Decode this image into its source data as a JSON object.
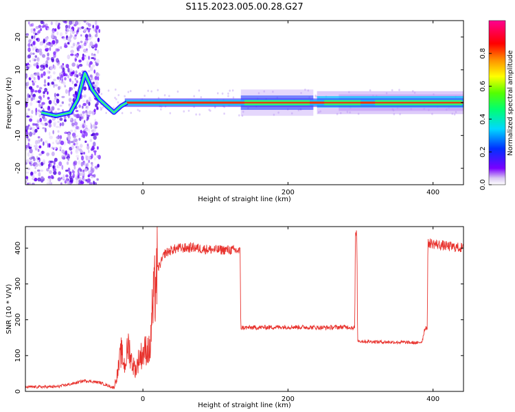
{
  "title": "S115.2023.005.00.28.G27",
  "chart_data": [
    {
      "type": "heatmap",
      "xlabel": "Height of straight line (km)",
      "ylabel": "Frequency (Hz)",
      "xlim": [
        -162,
        442
      ],
      "ylim": [
        -25,
        25
      ],
      "xticks": [
        0,
        200,
        400
      ],
      "yticks": [
        -20,
        -10,
        0,
        10,
        20
      ],
      "colorbar": {
        "label": "Normalized spectral amplitude",
        "ticks": [
          0.0,
          0.2,
          0.4,
          0.6,
          0.8
        ],
        "range": [
          0,
          1
        ],
        "colormap": "rainbow (white to purple to blue to cyan to green to yellow to red to magenta)"
      },
      "features": {
        "dominant_band_frequency": 0,
        "strong_band_x_range": [
          -25,
          442
        ],
        "weak_band_x_range": [
          135,
          235
        ],
        "widened_band_x_range": [
          240,
          442
        ],
        "low_altitude_scatter_x_range": [
          -162,
          -60
        ],
        "ridge_points": [
          [
            -140,
            -3
          ],
          [
            -120,
            -4
          ],
          [
            -100,
            -3
          ],
          [
            -90,
            1
          ],
          [
            -80,
            9
          ],
          [
            -70,
            4
          ],
          [
            -60,
            1
          ],
          [
            -50,
            -1
          ],
          [
            -40,
            -3
          ],
          [
            -30,
            -1
          ],
          [
            -22,
            0
          ]
        ]
      }
    },
    {
      "type": "line",
      "xlabel": "Height of straight line (km)",
      "ylabel": "SNR (10 * V/V)",
      "xlim": [
        -162,
        442
      ],
      "ylim": [
        0,
        460
      ],
      "xticks": [
        0,
        200,
        400
      ],
      "yticks": [
        0,
        100,
        200,
        300,
        400
      ],
      "color": "#e8322d",
      "series": [
        {
          "x": [
            -162,
            -120,
            -100,
            -80,
            -60,
            -40,
            -35,
            -30,
            -25,
            -20,
            -15,
            -10,
            -5,
            0,
            5,
            10,
            12,
            15,
            18,
            20,
            25,
            30,
            40,
            50,
            60,
            70,
            80,
            100,
            120,
            130,
            134,
            135,
            136,
            150,
            200,
            250,
            280,
            292,
            293,
            294,
            295,
            296,
            297,
            300,
            330,
            360,
            380,
            385,
            388,
            390,
            392,
            393,
            394,
            400,
            420,
            442
          ],
          "y": [
            12,
            13,
            20,
            30,
            25,
            10,
            50,
            110,
            70,
            130,
            80,
            60,
            95,
            105,
            120,
            110,
            200,
            250,
            320,
            340,
            360,
            385,
            395,
            400,
            400,
            402,
            398,
            395,
            395,
            393,
            390,
            175,
            178,
            178,
            180,
            178,
            180,
            178,
            430,
            440,
            430,
            140,
            142,
            140,
            138,
            137,
            135,
            140,
            170,
            180,
            175,
            410,
            415,
            412,
            405,
            400
          ]
        }
      ]
    }
  ]
}
